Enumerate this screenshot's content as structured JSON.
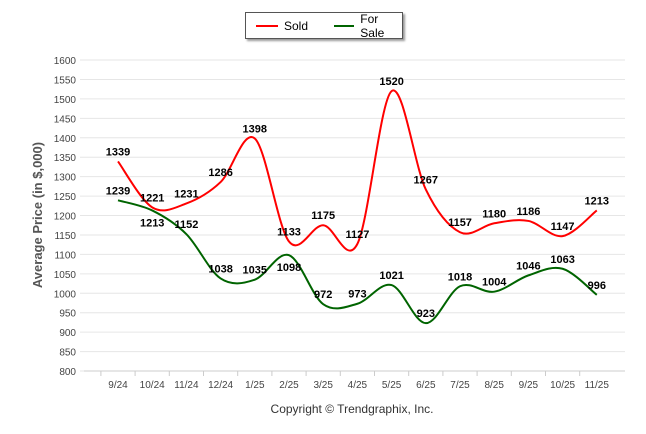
{
  "chart_data": {
    "type": "line",
    "ylabel": "Average Price (in $,000)",
    "xlabel": "",
    "footer": "Copyright © Trendgraphix, Inc.",
    "categories": [
      "9/24",
      "10/24",
      "11/24",
      "12/24",
      "1/25",
      "2/25",
      "3/25",
      "4/25",
      "5/25",
      "6/25",
      "7/25",
      "8/25",
      "9/25",
      "10/25",
      "11/25"
    ],
    "ylim": [
      800,
      1600
    ],
    "yticks": [
      800,
      850,
      900,
      950,
      1000,
      1050,
      1100,
      1150,
      1200,
      1250,
      1300,
      1350,
      1400,
      1450,
      1500,
      1550,
      1600
    ],
    "grid": true,
    "legend_position": "top-center",
    "series": [
      {
        "name": "Sold",
        "color": "#ff0000",
        "values": [
          1339,
          1221,
          1231,
          1286,
          1398,
          1133,
          1175,
          1127,
          1520,
          1267,
          1157,
          1180,
          1186,
          1147,
          1213
        ]
      },
      {
        "name": "For Sale",
        "color": "#006400",
        "values": [
          1239,
          1213,
          1152,
          1038,
          1035,
          1098,
          972,
          973,
          1021,
          923,
          1018,
          1004,
          1046,
          1063,
          996
        ]
      }
    ]
  }
}
